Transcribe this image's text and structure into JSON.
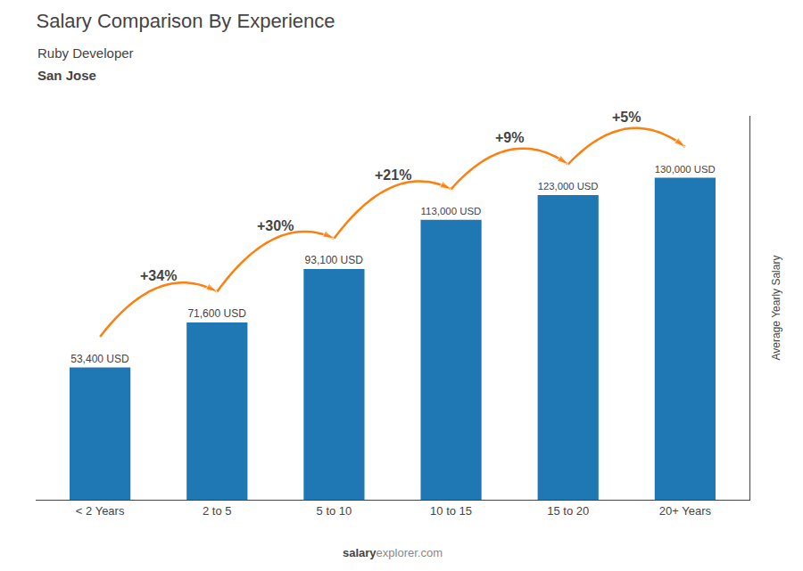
{
  "chart_data": {
    "type": "bar",
    "title": "Salary Comparison By Experience",
    "subtitle": [
      "Ruby Developer",
      "San Jose"
    ],
    "categories": [
      "< 2 Years",
      "2 to 5",
      "5 to 10",
      "10 to 15",
      "15 to 20",
      "20+ Years"
    ],
    "values": [
      53400,
      71600,
      93100,
      113000,
      123000,
      130000
    ],
    "value_labels": [
      "53,400 USD",
      "71,600 USD",
      "93,100 USD",
      "113,000 USD",
      "123,000 USD",
      "130,000 USD"
    ],
    "data_labels": true,
    "ylabel": "Average Yearly Salary",
    "ylim": [
      0,
      155000
    ],
    "grid": false,
    "tick_labels": "x",
    "annotations": [
      {
        "text": "+34%",
        "between": [
          "< 2 Years",
          "2 to 5"
        ]
      },
      {
        "text": "+30%",
        "between": [
          "2 to 5",
          "5 to 10"
        ]
      },
      {
        "text": "+21%",
        "between": [
          "5 to 10",
          "10 to 15"
        ]
      },
      {
        "text": "+9%",
        "between": [
          "10 to 15",
          "15 to 20"
        ]
      },
      {
        "text": "+5%",
        "between": [
          "15 to 20",
          "20+ Years"
        ]
      }
    ],
    "footer": [
      "salary",
      "explorer.com"
    ]
  }
}
